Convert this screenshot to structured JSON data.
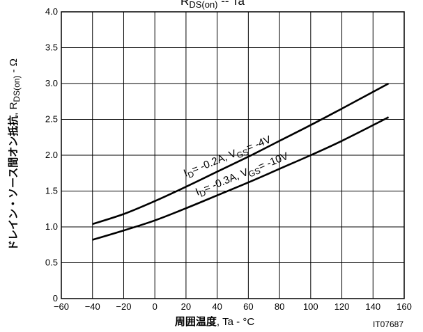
{
  "chart_data": {
    "type": "line",
    "title": {
      "main": "R",
      "sub": "DS(on)",
      "rest": " -- Ta"
    },
    "xlabel": {
      "bold": "周囲温度",
      "rest": ", Ta - °C"
    },
    "ylabel": {
      "bold": "ドレイン・ソース間オン抵抗",
      "mid": ", R",
      "sub": "DS(on)",
      "rest": " - Ω"
    },
    "xlim": [
      -60,
      160
    ],
    "ylim": [
      0,
      4.0
    ],
    "xticks": [
      -60,
      -40,
      -20,
      0,
      20,
      40,
      60,
      80,
      100,
      120,
      140,
      160
    ],
    "xtick_labels": [
      "−60",
      "−40",
      "−20",
      "0",
      "20",
      "40",
      "60",
      "80",
      "100",
      "120",
      "140",
      "160"
    ],
    "yticks": [
      0,
      0.5,
      1.0,
      1.5,
      2.0,
      2.5,
      3.0,
      3.5,
      4.0
    ],
    "ytick_labels": [
      "0",
      "0.5",
      "1.0",
      "1.5",
      "2.0",
      "2.5",
      "3.0",
      "3.5",
      "4.0"
    ],
    "grid": true,
    "series": [
      {
        "label": {
          "p1": "I",
          "s1": "D",
          "p2": "= -0.2A, V",
          "s2": "GS",
          "p3": "= -4V"
        },
        "x": [
          -40,
          -20,
          0,
          20,
          40,
          60,
          80,
          100,
          120,
          150
        ],
        "y": [
          1.04,
          1.18,
          1.36,
          1.56,
          1.77,
          1.98,
          2.2,
          2.42,
          2.65,
          3.0
        ]
      },
      {
        "label": {
          "p1": "I",
          "s1": "D",
          "p2": "= -0.3A, V",
          "s2": "GS",
          "p3": "= -10V"
        },
        "x": [
          -40,
          -20,
          0,
          20,
          40,
          60,
          80,
          100,
          120,
          150
        ],
        "y": [
          0.82,
          0.95,
          1.09,
          1.26,
          1.44,
          1.62,
          1.81,
          2.0,
          2.2,
          2.53
        ]
      }
    ]
  },
  "figure_code": "IT07687"
}
